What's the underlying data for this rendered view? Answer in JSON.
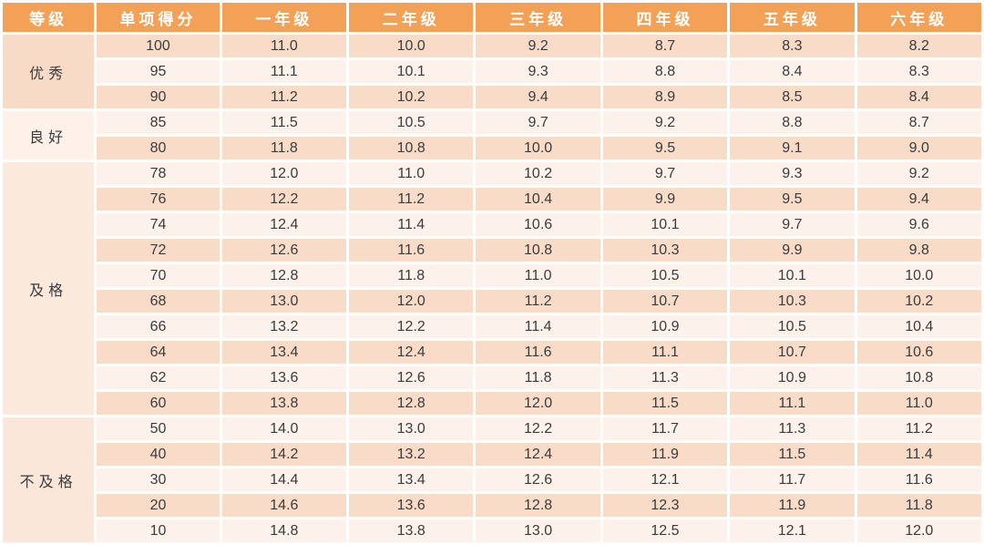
{
  "colors": {
    "header_bg": "#F2A157",
    "header_text": "#FFFFFF",
    "stripe_dark": "#F9DCC8",
    "stripe_light": "#FDF2EB",
    "body_text": "#3B3B3B",
    "group_cell_colors": [
      "#F8DBC7",
      "#FDF1E9",
      "#FBE9DC",
      "#FAE7D9"
    ]
  },
  "table": {
    "headers": [
      "等级",
      "单项得分",
      "一年级",
      "二年级",
      "三年级",
      "四年级",
      "五年级",
      "六年级"
    ],
    "groups": [
      {
        "label": "优秀",
        "rows": [
          {
            "score": "100",
            "values": [
              "11.0",
              "10.0",
              "9.2",
              "8.7",
              "8.3",
              "8.2"
            ]
          },
          {
            "score": "95",
            "values": [
              "11.1",
              "10.1",
              "9.3",
              "8.8",
              "8.4",
              "8.3"
            ]
          },
          {
            "score": "90",
            "values": [
              "11.2",
              "10.2",
              "9.4",
              "8.9",
              "8.5",
              "8.4"
            ]
          }
        ]
      },
      {
        "label": "良好",
        "rows": [
          {
            "score": "85",
            "values": [
              "11.5",
              "10.5",
              "9.7",
              "9.2",
              "8.8",
              "8.7"
            ]
          },
          {
            "score": "80",
            "values": [
              "11.8",
              "10.8",
              "10.0",
              "9.5",
              "9.1",
              "9.0"
            ]
          }
        ]
      },
      {
        "label": "及格",
        "rows": [
          {
            "score": "78",
            "values": [
              "12.0",
              "11.0",
              "10.2",
              "9.7",
              "9.3",
              "9.2"
            ]
          },
          {
            "score": "76",
            "values": [
              "12.2",
              "11.2",
              "10.4",
              "9.9",
              "9.5",
              "9.4"
            ]
          },
          {
            "score": "74",
            "values": [
              "12.4",
              "11.4",
              "10.6",
              "10.1",
              "9.7",
              "9.6"
            ]
          },
          {
            "score": "72",
            "values": [
              "12.6",
              "11.6",
              "10.8",
              "10.3",
              "9.9",
              "9.8"
            ]
          },
          {
            "score": "70",
            "values": [
              "12.8",
              "11.8",
              "11.0",
              "10.5",
              "10.1",
              "10.0"
            ]
          },
          {
            "score": "68",
            "values": [
              "13.0",
              "12.0",
              "11.2",
              "10.7",
              "10.3",
              "10.2"
            ]
          },
          {
            "score": "66",
            "values": [
              "13.2",
              "12.2",
              "11.4",
              "10.9",
              "10.5",
              "10.4"
            ]
          },
          {
            "score": "64",
            "values": [
              "13.4",
              "12.4",
              "11.6",
              "11.1",
              "10.7",
              "10.6"
            ]
          },
          {
            "score": "62",
            "values": [
              "13.6",
              "12.6",
              "11.8",
              "11.3",
              "10.9",
              "10.8"
            ]
          },
          {
            "score": "60",
            "values": [
              "13.8",
              "12.8",
              "12.0",
              "11.5",
              "11.1",
              "11.0"
            ]
          }
        ]
      },
      {
        "label": "不及格",
        "rows": [
          {
            "score": "50",
            "values": [
              "14.0",
              "13.0",
              "12.2",
              "11.7",
              "11.3",
              "11.2"
            ]
          },
          {
            "score": "40",
            "values": [
              "14.2",
              "13.2",
              "12.4",
              "11.9",
              "11.5",
              "11.4"
            ]
          },
          {
            "score": "30",
            "values": [
              "14.4",
              "13.4",
              "12.6",
              "12.1",
              "11.7",
              "11.6"
            ]
          },
          {
            "score": "20",
            "values": [
              "14.6",
              "13.6",
              "12.8",
              "12.3",
              "11.9",
              "11.8"
            ]
          },
          {
            "score": "10",
            "values": [
              "14.8",
              "13.8",
              "13.0",
              "12.5",
              "12.1",
              "12.0"
            ]
          }
        ]
      }
    ]
  }
}
